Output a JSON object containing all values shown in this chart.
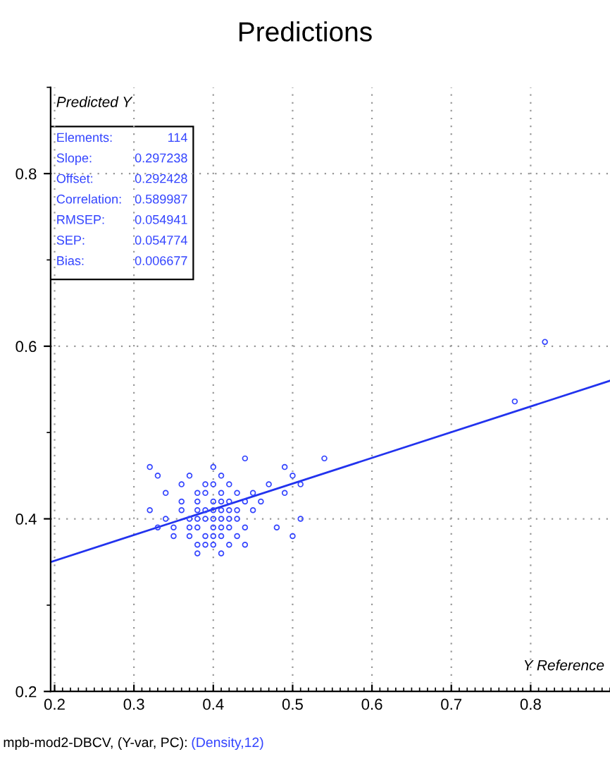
{
  "chart_data": {
    "type": "scatter",
    "title": "Predictions",
    "xlabel": "Y Reference",
    "ylabel": "Predicted Y",
    "xlim": [
      0.195,
      0.9
    ],
    "ylim": [
      0.2,
      0.9
    ],
    "xticks": [
      0.2,
      0.3,
      0.4,
      0.5,
      0.6,
      0.7,
      0.8
    ],
    "yticks": [
      0.2,
      0.4,
      0.6,
      0.8
    ],
    "grid": true,
    "series": [
      {
        "color": "#3344ff",
        "marker": "circle",
        "x": [
          0.32,
          0.33,
          0.32,
          0.34,
          0.33,
          0.35,
          0.36,
          0.37,
          0.36,
          0.36,
          0.37,
          0.37,
          0.37,
          0.38,
          0.38,
          0.38,
          0.38,
          0.38,
          0.38,
          0.38,
          0.39,
          0.39,
          0.39,
          0.39,
          0.39,
          0.39,
          0.4,
          0.4,
          0.4,
          0.4,
          0.4,
          0.4,
          0.4,
          0.4,
          0.41,
          0.41,
          0.41,
          0.41,
          0.41,
          0.41,
          0.41,
          0.41,
          0.42,
          0.42,
          0.42,
          0.42,
          0.42,
          0.42,
          0.43,
          0.43,
          0.43,
          0.43,
          0.44,
          0.44,
          0.44,
          0.44,
          0.45,
          0.45,
          0.46,
          0.47,
          0.48,
          0.49,
          0.49,
          0.5,
          0.5,
          0.51,
          0.51,
          0.54,
          0.35,
          0.34,
          0.78,
          0.818
        ],
        "values": [
          0.46,
          0.45,
          0.41,
          0.4,
          0.39,
          0.38,
          0.44,
          0.45,
          0.42,
          0.41,
          0.4,
          0.39,
          0.38,
          0.43,
          0.42,
          0.41,
          0.4,
          0.39,
          0.37,
          0.36,
          0.44,
          0.43,
          0.41,
          0.4,
          0.38,
          0.37,
          0.46,
          0.44,
          0.42,
          0.41,
          0.4,
          0.39,
          0.38,
          0.37,
          0.45,
          0.43,
          0.42,
          0.41,
          0.4,
          0.39,
          0.38,
          0.36,
          0.44,
          0.42,
          0.41,
          0.4,
          0.39,
          0.37,
          0.43,
          0.41,
          0.4,
          0.38,
          0.47,
          0.42,
          0.39,
          0.37,
          0.43,
          0.41,
          0.42,
          0.44,
          0.39,
          0.46,
          0.43,
          0.45,
          0.38,
          0.44,
          0.4,
          0.47,
          0.39,
          0.43,
          0.536,
          0.605
        ]
      },
      {
        "type": "line",
        "color": "#2233ee",
        "x": [
          0.195,
          0.9
        ],
        "values": [
          0.35,
          0.56
        ]
      }
    ],
    "annotations": [
      "mpb-mod2-DBCV, (Y-var, PC): ",
      "(Density,12)",
      "Elements:\t114",
      "Slope:\t0.297238",
      "Offset:\t0.292428",
      "Correlation:\t0.589987",
      "RMSEP:\t0.054941",
      "SEP:\t0.054774",
      "Bias:\t0.006677"
    ]
  }
}
